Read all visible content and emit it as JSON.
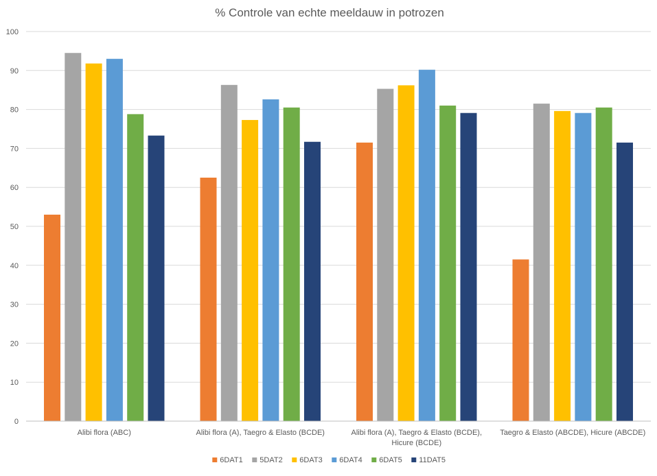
{
  "chart_data": {
    "type": "bar",
    "title": "% Controle van echte meeldauw in potrozen",
    "xlabel": "",
    "ylabel": "",
    "ylim": [
      0,
      100
    ],
    "yticks": [
      0,
      10,
      20,
      30,
      40,
      50,
      60,
      70,
      80,
      90,
      100
    ],
    "grid": true,
    "legend_position": "bottom",
    "categories": [
      [
        "Alibi flora (ABC)"
      ],
      [
        "Alibi flora (A), Taegro & Elasto (BCDE)"
      ],
      [
        "Alibi flora (A), Taegro & Elasto (BCDE),",
        "Hicure (BCDE)"
      ],
      [
        "Taegro & Elasto (ABCDE), Hicure (ABCDE)"
      ]
    ],
    "series": [
      {
        "name": "6DAT1",
        "color": "#ED7D31",
        "values": [
          53,
          62.5,
          71.5,
          41.5
        ]
      },
      {
        "name": "5DAT2",
        "color": "#A5A5A5",
        "values": [
          94.5,
          86.3,
          85.3,
          81.5
        ]
      },
      {
        "name": "6DAT3",
        "color": "#FFC000",
        "values": [
          91.8,
          77.3,
          86.2,
          79.6
        ]
      },
      {
        "name": "6DAT4",
        "color": "#5B9BD5",
        "values": [
          93,
          82.6,
          90.2,
          79.1
        ]
      },
      {
        "name": "6DAT5",
        "color": "#70AD47",
        "values": [
          78.8,
          80.5,
          81,
          80.5
        ]
      },
      {
        "name": "11DAT5",
        "color": "#264478",
        "values": [
          73.3,
          71.7,
          79.1,
          71.5
        ]
      }
    ]
  }
}
